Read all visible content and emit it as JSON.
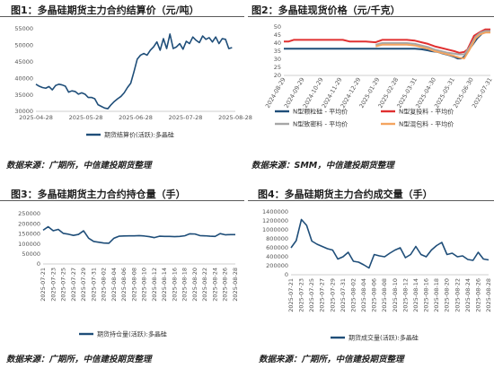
{
  "titles": {
    "fig1": "图1：多晶硅期货主力合约结算价（元/吨）",
    "fig2": "图2：多晶硅现货价格（元/千克）",
    "fig3": "图3：多晶硅期货主力合约持仓量（手）",
    "fig4": "图4：多晶硅期货主力合约成交量（手）"
  },
  "sources": {
    "fig1": "数据来源：广期所，中信建投期货整理",
    "fig2": "数据来源：SMM，中信建投期货整理",
    "fig3": "数据来源：广期所，中信建投期货整理",
    "fig4": "数据来源：广期所，中信建投期货整理"
  },
  "colors": {
    "navy": "#1f4e79",
    "red": "#e03030",
    "gray": "#a6a6a6",
    "orange": "#f4a460",
    "dark_blue": "#1f4e79"
  },
  "chart_data": [
    {
      "id": "fig1",
      "type": "line",
      "ylim": [
        30000,
        55000
      ],
      "yticks": [
        "55000",
        "50000",
        "45000",
        "40000",
        "35000",
        "30000"
      ],
      "xticks": [
        "2025-04-28",
        "2025-05-28",
        "2025-06-28",
        "2025-07-28",
        "2025-08-28"
      ],
      "xrange": [
        0,
        122
      ],
      "series": [
        {
          "name": "期货结算价(活跃):多晶硅",
          "color": "#1f4e79",
          "x": [
            0,
            2,
            4,
            6,
            8,
            10,
            12,
            14,
            16,
            18,
            20,
            22,
            24,
            26,
            28,
            30,
            32,
            34,
            36,
            38,
            40,
            42,
            44,
            46,
            48,
            50,
            52,
            54,
            56,
            58,
            60,
            62,
            64,
            66,
            68,
            70,
            72,
            74,
            76,
            78,
            80,
            82,
            84,
            86,
            88,
            90,
            92,
            94,
            96,
            98,
            100,
            102,
            104,
            106,
            108,
            110,
            112,
            114,
            116,
            118,
            120
          ],
          "y": [
            38200,
            37600,
            37200,
            37000,
            37500,
            36500,
            37800,
            38200,
            38000,
            37600,
            35800,
            36200,
            36000,
            35200,
            35600,
            35200,
            34200,
            34200,
            33800,
            32000,
            31500,
            31000,
            30800,
            32000,
            33000,
            33800,
            34500,
            35600,
            37200,
            38500,
            42000,
            45800,
            47000,
            47500,
            47000,
            48500,
            49500,
            51000,
            48500,
            52000,
            49000,
            53400,
            49000,
            49500,
            50500,
            48800,
            51200,
            50500,
            52500,
            51500,
            50800,
            52800,
            51800,
            52300,
            51000,
            52500,
            50500,
            52000,
            51800,
            49000,
            49300
          ]
        }
      ]
    },
    {
      "id": "fig2",
      "type": "line",
      "ylim": [
        20,
        50
      ],
      "yticks": [
        "50",
        "45",
        "40",
        "35",
        "30",
        "25",
        "20"
      ],
      "xticks": [
        "2024-08-29",
        "2024-09-29",
        "2024-10-29",
        "2024-11-29",
        "2024-12-29",
        "2025-01-29",
        "2025-02-28",
        "2025-03-31",
        "2025-04-30",
        "2025-05-31",
        "2025-06-30",
        "2025-07-31"
      ],
      "xrange": [
        0,
        12.6
      ],
      "series": [
        {
          "name": "N型颗粒硅 - 平均价",
          "color": "#1f4e79",
          "x": [
            0,
            0.5,
            3.0,
            3.5,
            5.6,
            6.5,
            7.5,
            8.0,
            8.4,
            8.8,
            9.0,
            9.4,
            9.7,
            10.1,
            10.4,
            10.6,
            10.8,
            11.0,
            11.3,
            11.8,
            12.1,
            12.4,
            12.6
          ],
          "y": [
            36.5,
            36.5,
            36.5,
            36.5,
            36.5,
            36.5,
            36.5,
            36.5,
            36.2,
            35.5,
            35.0,
            34.5,
            33.5,
            32.5,
            31.5,
            30.5,
            30.5,
            31.5,
            36.0,
            43.0,
            46.0,
            47.0,
            47.0
          ]
        },
        {
          "name": "N型复投料 - 平均价",
          "color": "#e03030",
          "x": [
            0,
            0.3,
            0.6,
            3.0,
            3.6,
            4.0,
            5.0,
            5.6,
            6.0,
            7.5,
            8.0,
            8.4,
            8.8,
            9.2,
            9.6,
            10.0,
            10.4,
            10.7,
            11.0,
            11.2,
            11.6,
            12.0,
            12.3,
            12.6
          ],
          "y": [
            41.0,
            41.0,
            42.0,
            42.0,
            42.0,
            41.0,
            41.0,
            40.5,
            42.0,
            42.0,
            41.5,
            40.5,
            39.5,
            38.0,
            37.0,
            36.0,
            35.0,
            34.0,
            34.5,
            36.0,
            44.5,
            47.0,
            48.5,
            48.5
          ]
        },
        {
          "name": "N型致密料 - 平均价",
          "color": "#a6a6a6",
          "x": [
            5.6,
            6.0,
            7.5,
            8.0,
            8.4,
            8.8,
            9.2,
            9.6,
            10.0,
            10.4,
            10.7,
            11.0,
            11.3,
            11.7,
            12.0,
            12.3,
            12.6
          ],
          "y": [
            39.0,
            40.0,
            40.0,
            39.5,
            38.5,
            37.5,
            36.0,
            35.0,
            34.0,
            33.5,
            33.0,
            33.0,
            37.0,
            44.0,
            46.5,
            47.5,
            47.5
          ]
        },
        {
          "name": "N型混包料 - 平均价",
          "color": "#f4a460",
          "x": [
            5.6,
            6.0,
            7.5,
            8.0,
            8.4,
            8.8,
            9.2,
            9.6,
            10.0,
            10.4,
            10.7,
            11.0,
            11.3,
            11.7,
            12.0,
            12.3,
            12.6
          ],
          "y": [
            38.0,
            39.0,
            39.0,
            38.5,
            37.5,
            36.5,
            35.0,
            34.0,
            33.0,
            32.0,
            31.0,
            30.5,
            35.5,
            43.0,
            45.5,
            46.5,
            46.5
          ]
        }
      ]
    },
    {
      "id": "fig3",
      "type": "line",
      "ylim": [
        0,
        250000
      ],
      "yticks": [
        "250000",
        "200000",
        "150000",
        "100000",
        "50000",
        "0"
      ],
      "xticks": [
        "2025-07-21",
        "2025-07-23",
        "2025-07-25",
        "2025-07-27",
        "2025-07-29",
        "2025-07-31",
        "2025-08-02",
        "2025-08-04",
        "2025-08-06",
        "2025-08-08",
        "2025-08-10",
        "2025-08-12",
        "2025-08-14",
        "2025-08-16",
        "2025-08-18",
        "2025-08-20",
        "2025-08-22",
        "2025-08-24",
        "2025-08-26",
        "2025-08-28"
      ],
      "xrange": [
        0,
        38
      ],
      "series": [
        {
          "name": "期货持仓量(活跃):多晶硅",
          "color": "#1f4e79",
          "x": [
            0,
            1,
            2,
            3,
            4,
            5,
            6,
            7,
            8,
            9,
            10,
            11,
            12,
            13,
            14,
            15,
            16,
            17,
            18,
            19,
            20,
            21,
            22,
            23,
            24,
            25,
            26,
            27,
            28,
            29,
            30,
            31,
            32,
            33,
            34,
            35,
            36,
            37,
            38
          ],
          "y": [
            168000,
            185000,
            165000,
            172000,
            152000,
            148000,
            142000,
            147000,
            165000,
            128000,
            112000,
            108000,
            104000,
            103000,
            128000,
            138000,
            139000,
            140000,
            140000,
            141000,
            139000,
            136000,
            131000,
            138000,
            137000,
            137000,
            136000,
            137000,
            140000,
            150000,
            149000,
            141000,
            140000,
            138000,
            137000,
            151000,
            145000,
            146000,
            146000
          ]
        }
      ]
    },
    {
      "id": "fig4",
      "type": "line",
      "ylim": [
        0,
        1400000
      ],
      "yticks": [
        "1400000",
        "1200000",
        "1000000",
        "800000",
        "600000",
        "400000",
        "200000",
        "0"
      ],
      "xticks": [
        "2025-07-21",
        "2025-07-23",
        "2025-07-25",
        "2025-07-27",
        "2025-07-29",
        "2025-07-31",
        "2025-08-02",
        "2025-08-04",
        "2025-08-06",
        "2025-08-08",
        "2025-08-10",
        "2025-08-12",
        "2025-08-14",
        "2025-08-16",
        "2025-08-18",
        "2025-08-20",
        "2025-08-22",
        "2025-08-24",
        "2025-08-26",
        "2025-08-28"
      ],
      "xrange": [
        0,
        38
      ],
      "series": [
        {
          "name": "期货成交量(活跃):多晶硅",
          "color": "#1f4e79",
          "x": [
            0,
            1,
            2,
            3,
            4,
            5,
            6,
            7,
            8,
            9,
            10,
            11,
            12,
            13,
            14,
            15,
            16,
            17,
            18,
            19,
            20,
            21,
            22,
            23,
            24,
            25,
            26,
            27,
            28,
            29,
            30,
            31,
            32,
            33,
            34,
            35,
            36,
            37,
            38
          ],
          "y": [
            600000,
            760000,
            1230000,
            1100000,
            750000,
            680000,
            630000,
            580000,
            550000,
            350000,
            400000,
            500000,
            300000,
            280000,
            220000,
            150000,
            450000,
            420000,
            400000,
            480000,
            550000,
            600000,
            380000,
            450000,
            630000,
            450000,
            400000,
            550000,
            650000,
            720000,
            450000,
            480000,
            400000,
            420000,
            340000,
            320000,
            500000,
            350000,
            330000
          ]
        }
      ]
    }
  ]
}
